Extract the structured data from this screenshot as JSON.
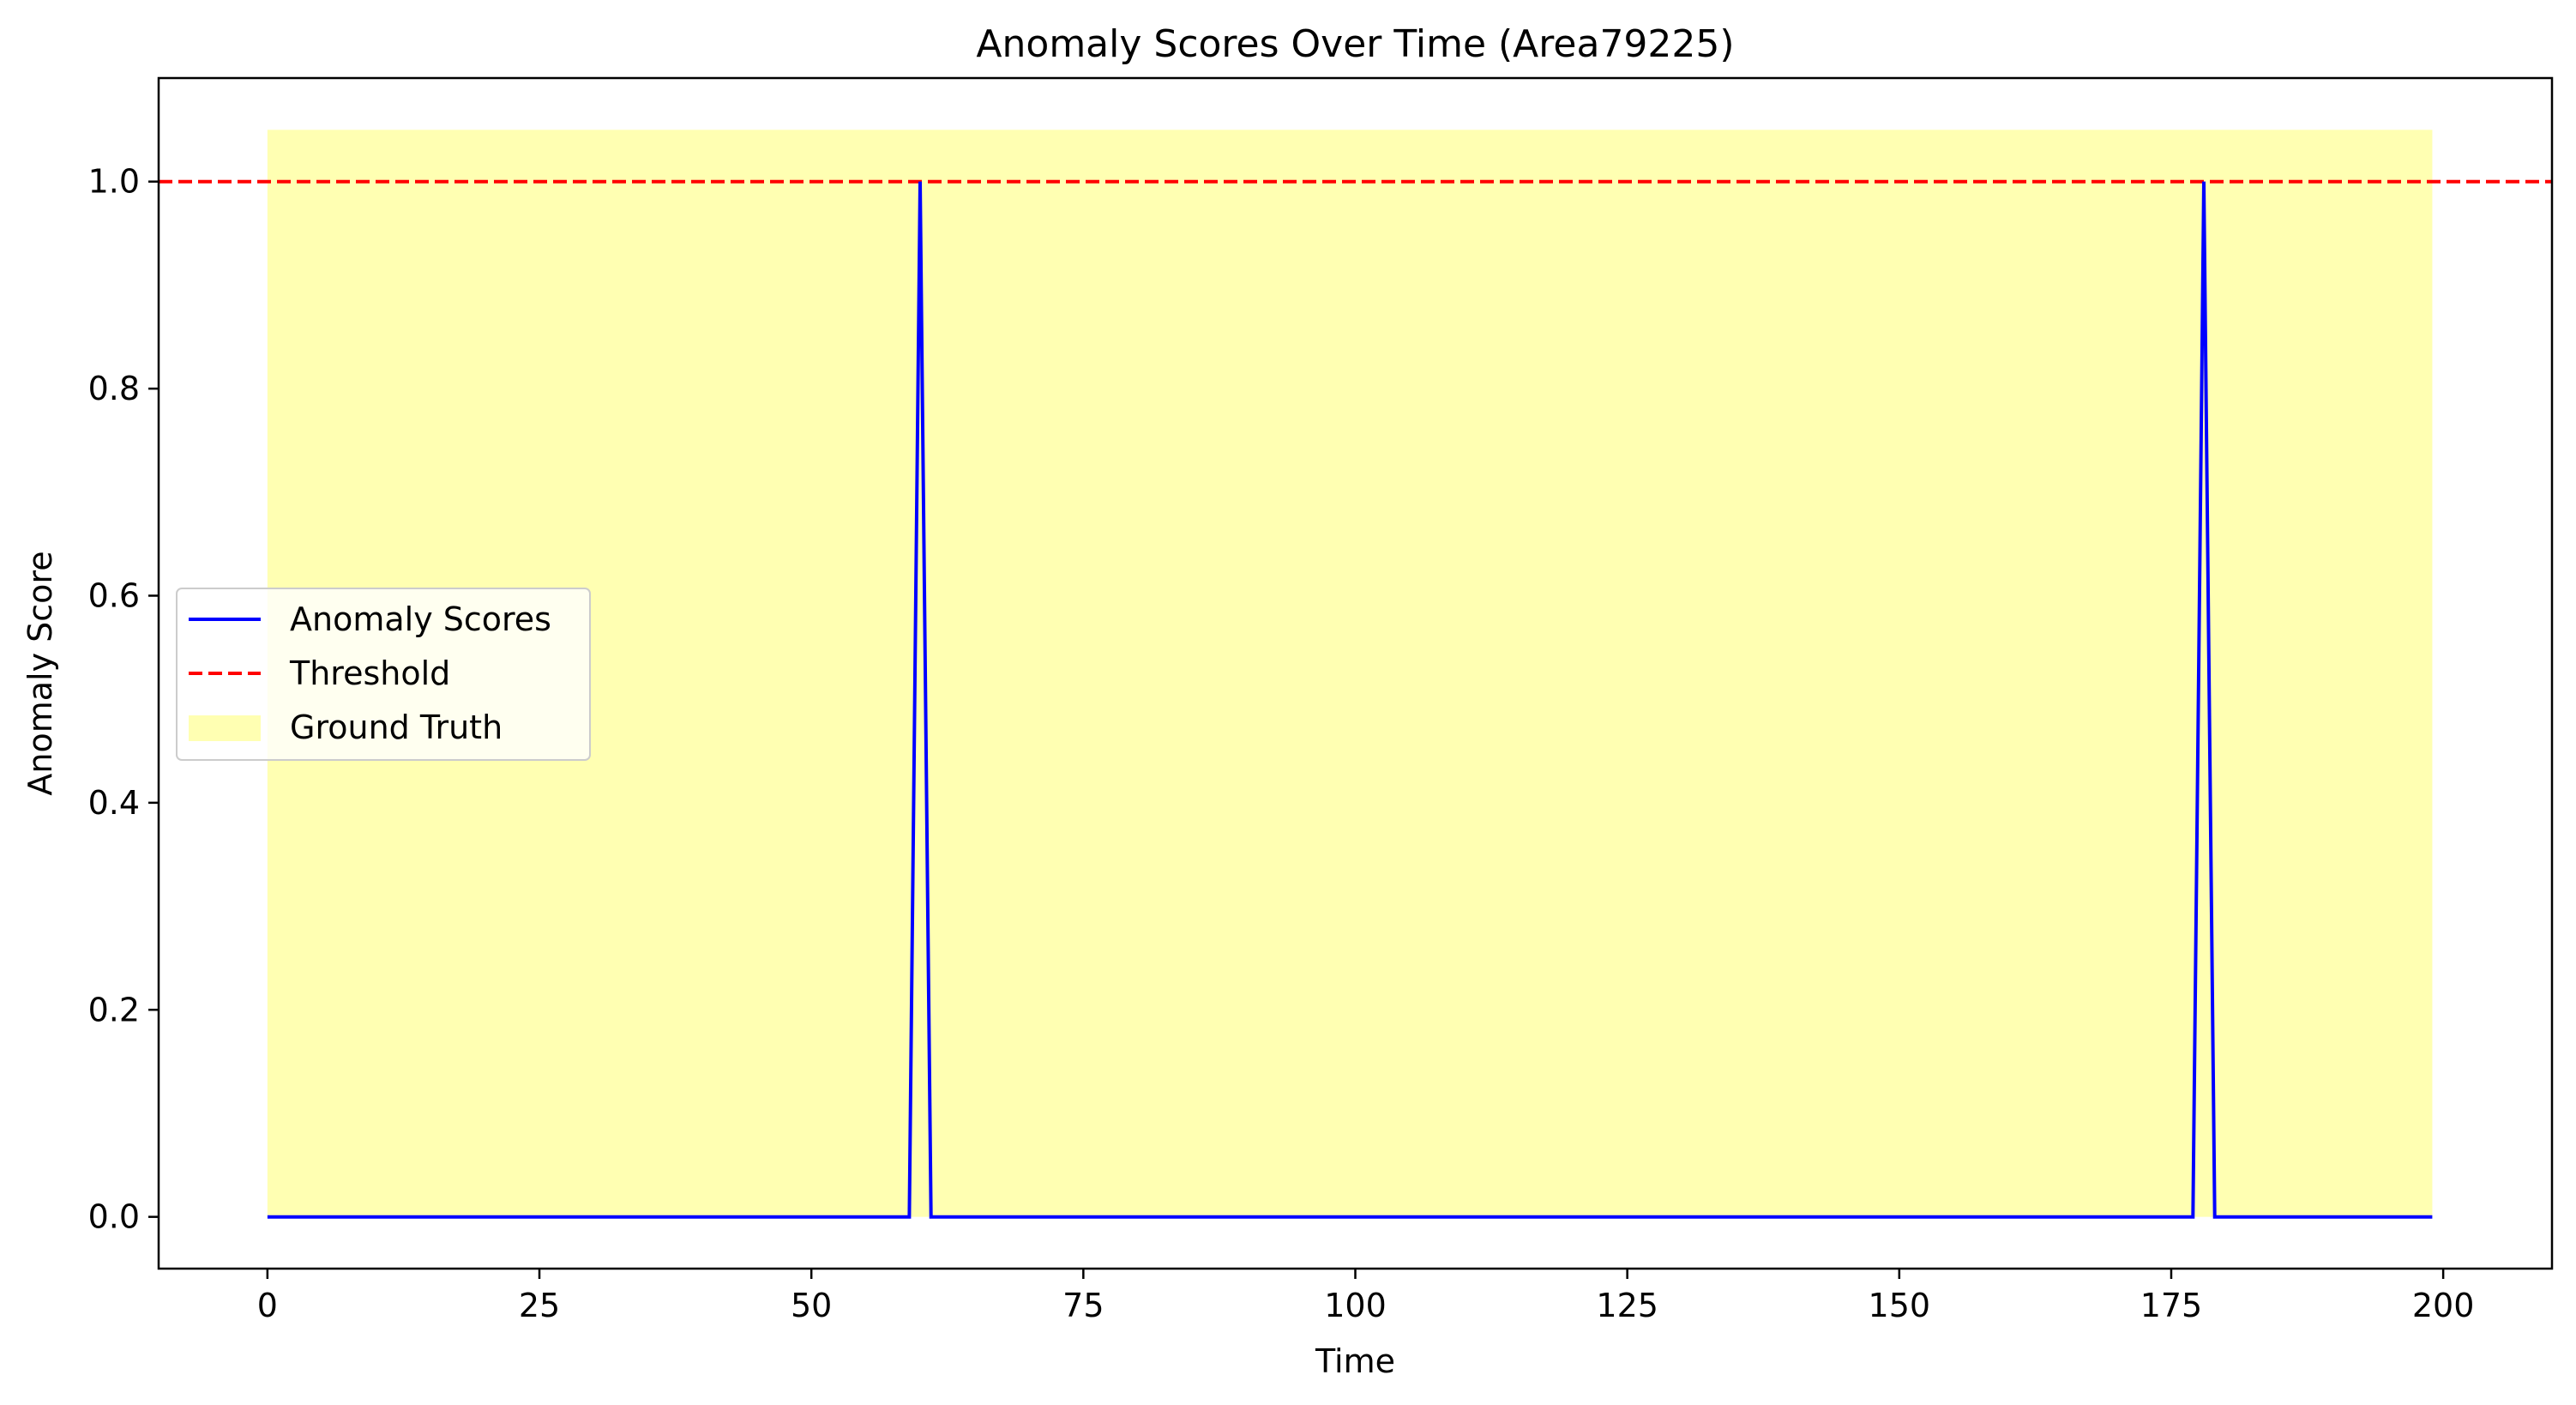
{
  "chart_data": {
    "type": "line",
    "title": "Anomaly Scores Over Time (Area79225)",
    "xlabel": "Time",
    "ylabel": "Anomaly Score",
    "xlim": [
      -10,
      210
    ],
    "ylim": [
      -0.05,
      1.1
    ],
    "x_ticks": [
      0,
      25,
      50,
      75,
      100,
      125,
      150,
      175,
      200
    ],
    "y_ticks": [
      0.0,
      0.2,
      0.4,
      0.6,
      0.8,
      1.0
    ],
    "grid": false,
    "legend_position": "center-left",
    "series": [
      {
        "name": "Anomaly Scores",
        "color": "#0000ff",
        "style": "solid",
        "x": [
          0,
          59,
          60,
          61,
          177,
          178,
          179,
          199
        ],
        "y": [
          0,
          0,
          1,
          0,
          0,
          1,
          0,
          0
        ]
      },
      {
        "name": "Threshold",
        "color": "#ff0000",
        "style": "dashed",
        "y_value": 1.0
      },
      {
        "name": "Ground Truth",
        "color": "#ffff00",
        "style": "fill",
        "x_range": [
          0,
          199
        ],
        "y_range": [
          0,
          1.05
        ]
      }
    ]
  }
}
